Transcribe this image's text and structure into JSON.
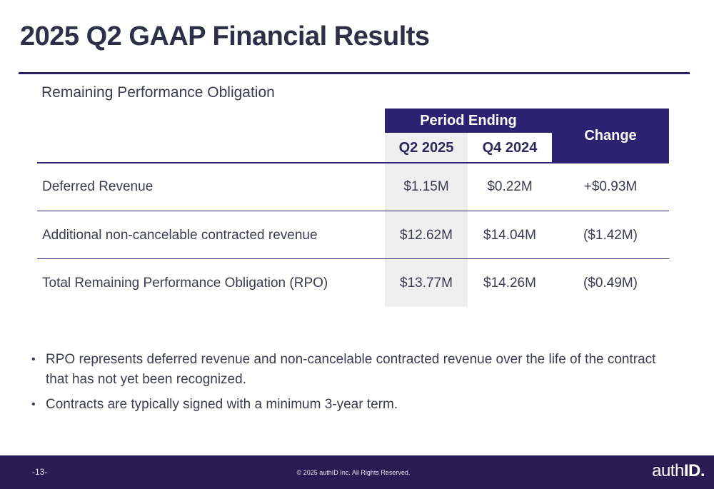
{
  "title": "2025 Q2 GAAP Financial Results",
  "subtitle": "Remaining Performance Obligation",
  "table": {
    "group_header": "Period Ending",
    "col_q2": "Q2 2025",
    "col_q4": "Q4 2024",
    "col_change": "Change",
    "rows": [
      {
        "label": "Deferred Revenue",
        "q2": "$1.15M",
        "q4": "$0.22M",
        "change": "+$0.93M"
      },
      {
        "label": "Additional non-cancelable contracted revenue",
        "q2": "$12.62M",
        "q4": "$14.04M",
        "change": "($1.42M)"
      },
      {
        "label": "Total Remaining Performance Obligation (RPO)",
        "q2": "$13.77M",
        "q4": "$14.26M",
        "change": "($0.49M)"
      }
    ]
  },
  "bullets": [
    "RPO represents deferred revenue and non-cancelable contracted revenue over the life of the contract that has not yet been recognized.",
    "Contracts are typically signed with a minimum 3-year term."
  ],
  "footer": {
    "page_number": "-13-",
    "copyright": "© 2025 authID Inc. All Rights Reserved.",
    "logo_part1": "auth",
    "logo_part2": "ID",
    "logo_dot": "."
  },
  "colors": {
    "header_bg": "#2d2272",
    "footer_bg": "#2a1b52",
    "shade": "#efefef"
  }
}
